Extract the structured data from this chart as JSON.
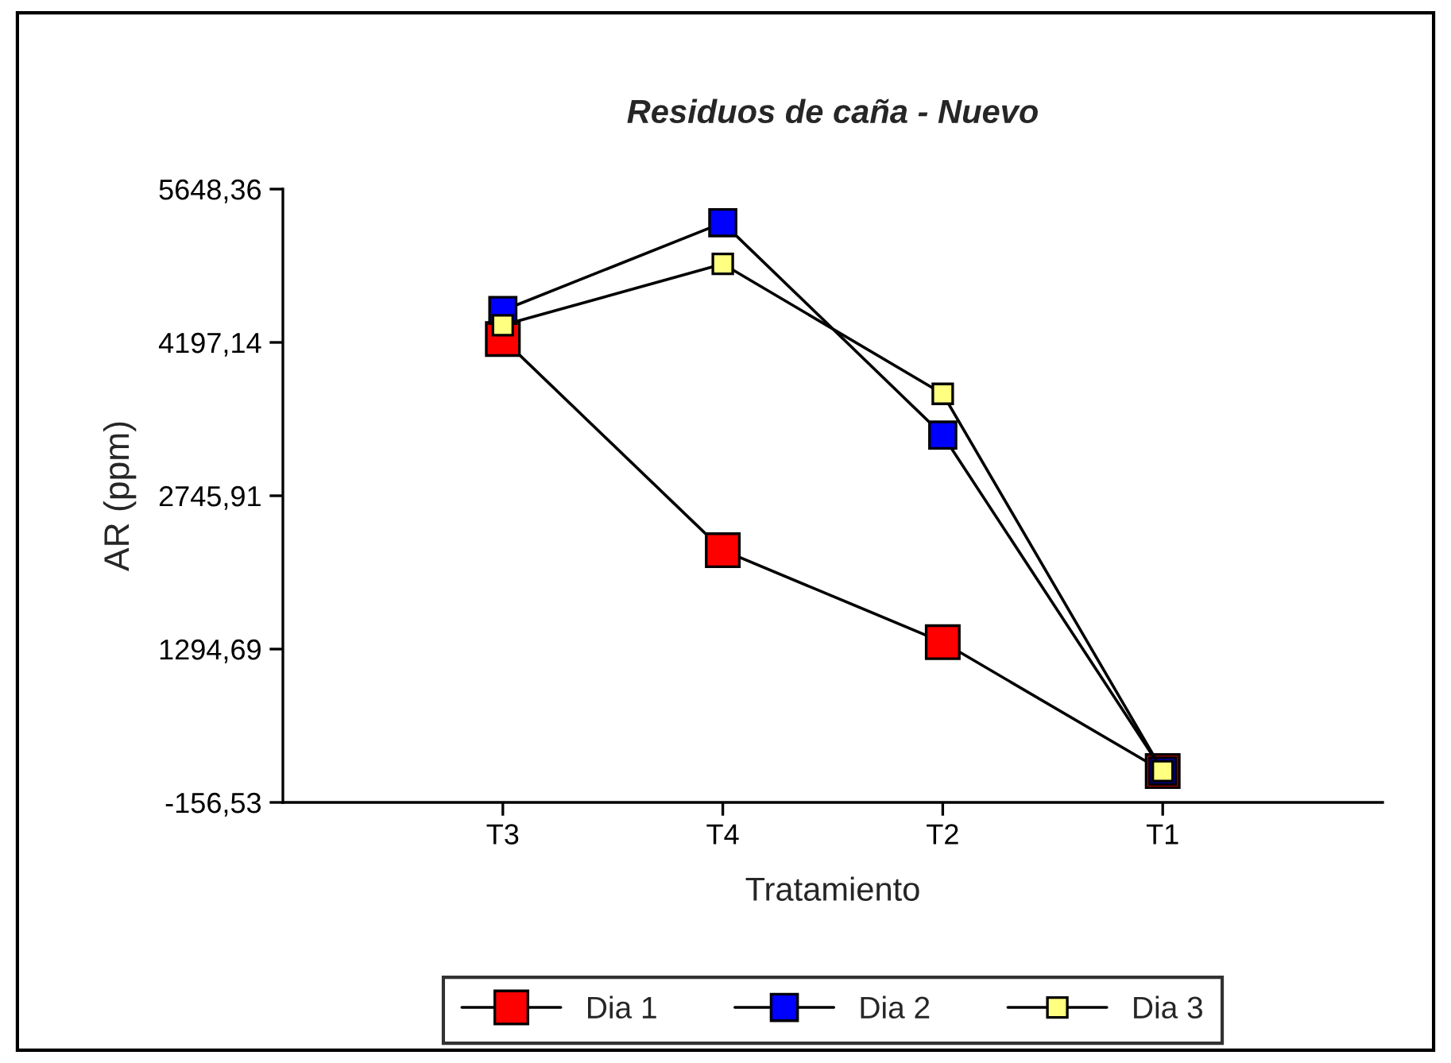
{
  "chart_data": {
    "type": "line",
    "title": "Residuos de caña - Nuevo",
    "xlabel": "Tratamiento",
    "ylabel": "AR (ppm)",
    "categories": [
      "T3",
      "T4",
      "T2",
      "T1"
    ],
    "series": [
      {
        "name": "Dia 1",
        "color": "#ff0000",
        "values": [
          4230,
          2230,
          1360,
          140
        ]
      },
      {
        "name": "Dia 2",
        "color": "#0000ff",
        "values": [
          4500,
          5330,
          3320,
          140
        ]
      },
      {
        "name": "Dia 3",
        "color": "#ffff80",
        "values": [
          4360,
          4940,
          3710,
          140
        ]
      }
    ],
    "ylim": [
      -156.53,
      5648.36
    ],
    "yticks": [
      {
        "value": -156.53,
        "label": "-156,53"
      },
      {
        "value": 1294.69,
        "label": "1294,69"
      },
      {
        "value": 2745.91,
        "label": "2745,91"
      },
      {
        "value": 4197.14,
        "label": "4197,14"
      },
      {
        "value": 5648.36,
        "label": "5648,36"
      }
    ],
    "marker": "square",
    "line_style": "solid",
    "grid": false,
    "legend": "bottom"
  }
}
